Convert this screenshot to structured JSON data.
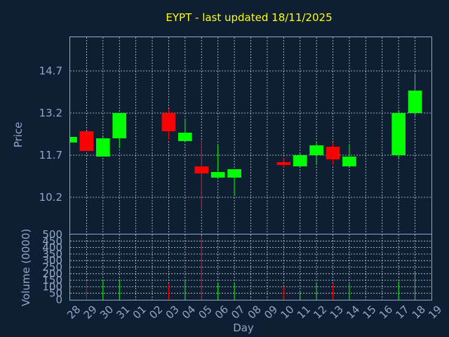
{
  "chart_data": {
    "type": "candlestick",
    "title": "EYPT - last updated 18/11/2025",
    "xlabel": "Day",
    "price_panel": {
      "ylabel": "Price",
      "ylim": [
        8.9,
        15.9
      ],
      "yticks": [
        10.2,
        11.7,
        13.2,
        14.7
      ],
      "ytick_labels": [
        "10.2",
        "11.7",
        "13.2",
        "14.7"
      ],
      "grid": true
    },
    "volume_panel": {
      "ylabel": "Volume (0000)",
      "ylim": [
        0,
        500
      ],
      "yticks": [
        0,
        50,
        100,
        150,
        200,
        250,
        300,
        350,
        400,
        450,
        500
      ],
      "ytick_labels": [
        "0",
        "50",
        "100",
        "150",
        "200",
        "250",
        "300",
        "350",
        "400",
        "450",
        "500"
      ],
      "grid": true
    },
    "x_tick_labels": [
      "28",
      "29",
      "30",
      "31",
      "01",
      "02",
      "03",
      "04",
      "05",
      "06",
      "07",
      "08",
      "09",
      "10",
      "11",
      "12",
      "13",
      "14",
      "15",
      "16",
      "17",
      "18",
      "19"
    ],
    "up_color": "#00ff00",
    "down_color": "#ff0000",
    "candles": [
      {
        "day": "28",
        "open": 12.15,
        "close": 12.35,
        "high": 12.35,
        "low": 12.15,
        "volume": 0
      },
      {
        "day": "29",
        "open": 12.55,
        "close": 11.85,
        "high": 12.55,
        "low": 11.85,
        "volume": 140
      },
      {
        "day": "30",
        "open": 11.65,
        "close": 12.3,
        "high": 12.35,
        "low": 11.65,
        "volume": 150
      },
      {
        "day": "31",
        "open": 12.3,
        "close": 13.2,
        "high": 13.2,
        "low": 11.95,
        "volume": 150
      },
      {
        "day": "03",
        "open": 13.2,
        "close": 12.55,
        "high": 13.35,
        "low": 12.25,
        "volume": 120
      },
      {
        "day": "04",
        "open": 12.2,
        "close": 12.5,
        "high": 13.0,
        "low": 12.2,
        "volume": 150
      },
      {
        "day": "05",
        "open": 11.3,
        "close": 11.05,
        "high": 12.25,
        "low": 9.75,
        "volume": 490
      },
      {
        "day": "06",
        "open": 10.9,
        "close": 11.1,
        "high": 12.05,
        "low": 10.9,
        "volume": 130
      },
      {
        "day": "07",
        "open": 10.9,
        "close": 11.2,
        "high": 11.2,
        "low": 10.25,
        "volume": 130
      },
      {
        "day": "10",
        "open": 11.45,
        "close": 11.35,
        "high": 11.6,
        "low": 11.25,
        "volume": 100
      },
      {
        "day": "11",
        "open": 11.3,
        "close": 11.7,
        "high": 11.75,
        "low": 11.3,
        "volume": 70
      },
      {
        "day": "12",
        "open": 11.7,
        "close": 12.05,
        "high": 12.2,
        "low": 11.35,
        "volume": 130
      },
      {
        "day": "13",
        "open": 12.0,
        "close": 11.55,
        "high": 12.15,
        "low": 11.35,
        "volume": 120
      },
      {
        "day": "14",
        "open": 11.3,
        "close": 11.65,
        "high": 12.1,
        "low": 11.3,
        "volume": 120
      },
      {
        "day": "17",
        "open": 11.7,
        "close": 13.2,
        "high": 13.3,
        "low": 11.6,
        "volume": 140
      },
      {
        "day": "18",
        "open": 13.2,
        "close": 14.0,
        "high": 14.55,
        "low": 13.05,
        "volume": 210
      }
    ]
  }
}
